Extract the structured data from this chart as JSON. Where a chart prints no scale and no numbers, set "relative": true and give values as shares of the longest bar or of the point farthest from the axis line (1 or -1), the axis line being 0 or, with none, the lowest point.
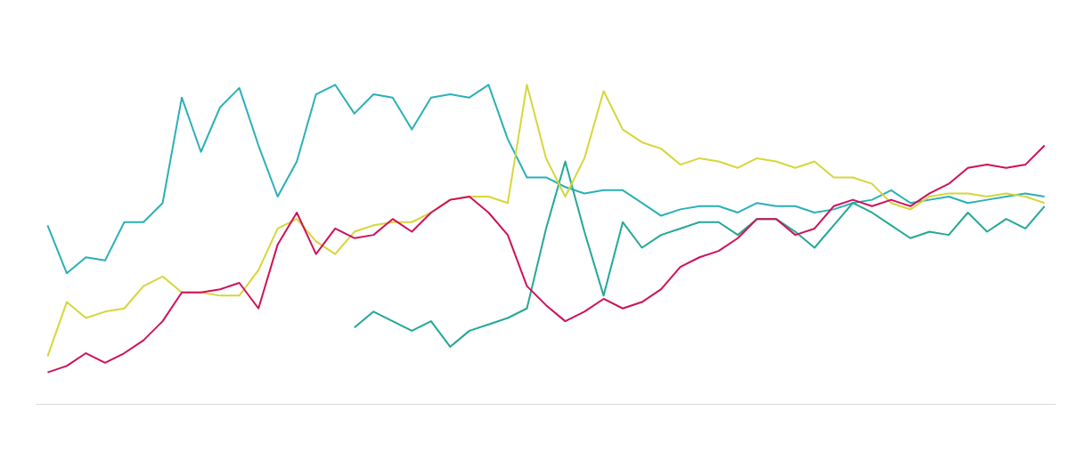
{
  "chart_data": {
    "type": "line",
    "relative": true,
    "grid": false,
    "categories": [
      null,
      null,
      null,
      null,
      null,
      null,
      null,
      null,
      null,
      null,
      null,
      null,
      null,
      null,
      null,
      null,
      null,
      null,
      null,
      null,
      null,
      null,
      null,
      null,
      null,
      null,
      null,
      null,
      null,
      null,
      null,
      null,
      null,
      null,
      null,
      null,
      null,
      null,
      null,
      null,
      null,
      null,
      null,
      null,
      null,
      null,
      null,
      null,
      null,
      null,
      null,
      null,
      null
    ],
    "series": [
      {
        "color": "#2ab0b8",
        "values": [
          0.56,
          0.41,
          0.46,
          0.45,
          0.57,
          0.57,
          0.63,
          0.96,
          0.79,
          0.93,
          0.99,
          0.81,
          0.65,
          0.76,
          0.97,
          1.0,
          0.91,
          0.97,
          0.96,
          0.86,
          0.96,
          0.97,
          0.96,
          1.0,
          0.83,
          0.71,
          0.71,
          0.68,
          0.66,
          0.67,
          0.67,
          0.63,
          0.59,
          0.61,
          0.62,
          0.62,
          0.6,
          0.63,
          0.62,
          0.62,
          0.6,
          0.61,
          0.63,
          0.64,
          0.67,
          0.63,
          0.64,
          0.65,
          0.63,
          0.64,
          0.65,
          0.66,
          0.65
        ]
      },
      {
        "color": "#23a896",
        "values": [
          null,
          null,
          null,
          null,
          null,
          null,
          null,
          null,
          null,
          null,
          null,
          null,
          null,
          null,
          null,
          null,
          0.24,
          0.29,
          0.26,
          0.23,
          0.26,
          0.18,
          0.23,
          0.25,
          0.27,
          0.3,
          0.55,
          0.76,
          0.54,
          0.34,
          0.57,
          0.49,
          0.53,
          0.55,
          0.57,
          0.57,
          0.53,
          0.58,
          0.58,
          0.54,
          0.49,
          0.56,
          0.63,
          0.6,
          0.56,
          0.52,
          0.54,
          0.53,
          0.6,
          0.54,
          0.58,
          0.55,
          0.62
        ]
      },
      {
        "color": "#d6d63a",
        "values": [
          0.15,
          0.32,
          0.27,
          0.29,
          0.3,
          0.37,
          0.4,
          0.35,
          0.35,
          0.34,
          0.34,
          0.42,
          0.55,
          0.58,
          0.51,
          0.47,
          0.54,
          0.56,
          0.57,
          0.57,
          0.6,
          0.64,
          0.65,
          0.65,
          0.63,
          1.0,
          0.77,
          0.65,
          0.77,
          0.98,
          0.86,
          0.82,
          0.8,
          0.75,
          0.77,
          0.76,
          0.74,
          0.77,
          0.76,
          0.74,
          0.76,
          0.71,
          0.71,
          0.69,
          0.63,
          0.61,
          0.65,
          0.66,
          0.66,
          0.65,
          0.66,
          0.65,
          0.63
        ]
      },
      {
        "color": "#d0105a",
        "values": [
          0.1,
          0.12,
          0.16,
          0.13,
          0.16,
          0.2,
          0.26,
          0.35,
          0.35,
          0.36,
          0.38,
          0.3,
          0.5,
          0.6,
          0.47,
          0.55,
          0.52,
          0.53,
          0.58,
          0.54,
          0.6,
          0.64,
          0.65,
          0.6,
          0.53,
          0.37,
          0.31,
          0.26,
          0.29,
          0.33,
          0.3,
          0.32,
          0.36,
          0.43,
          0.46,
          0.48,
          0.52,
          0.58,
          0.58,
          0.53,
          0.55,
          0.62,
          0.64,
          0.62,
          0.64,
          0.62,
          0.66,
          0.69,
          0.74,
          0.75,
          0.74,
          0.75,
          0.81
        ]
      }
    ]
  }
}
